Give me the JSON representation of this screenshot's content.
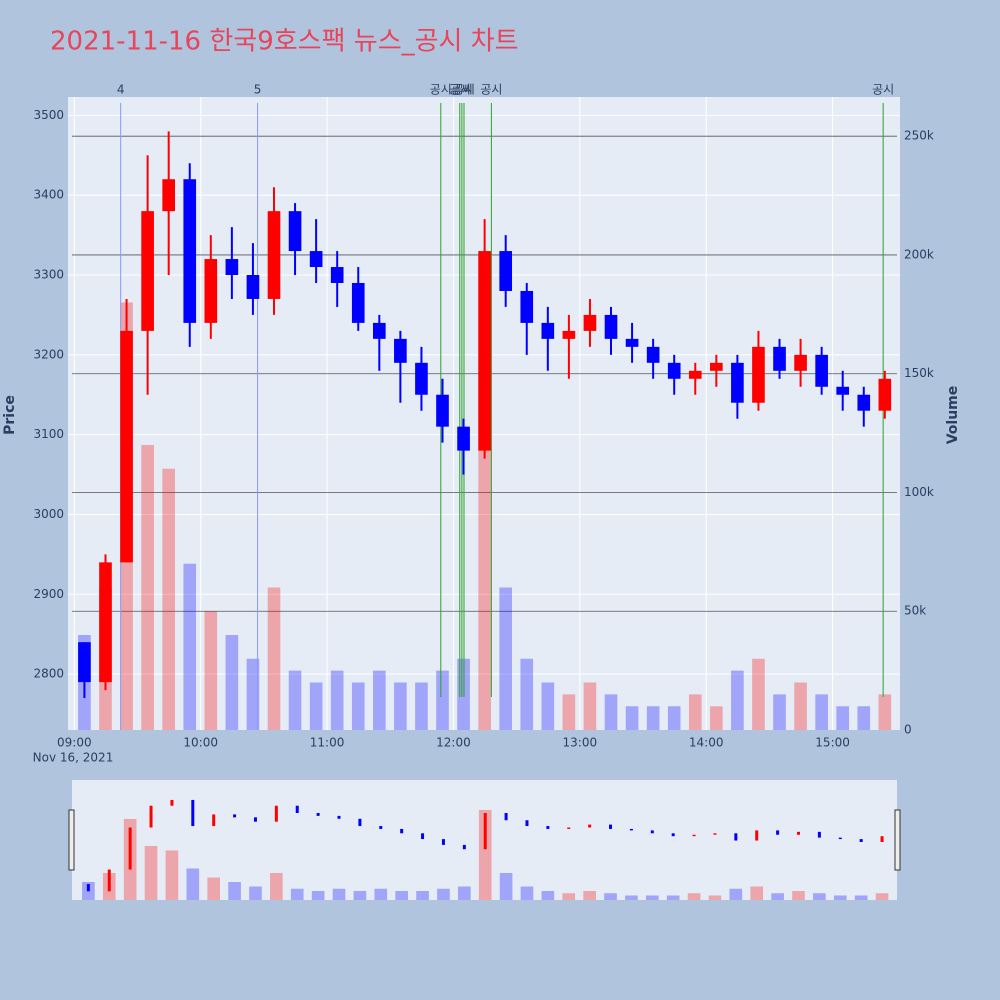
{
  "chart_data": {
    "type": "candlestick",
    "title": "2021-11-16 한국9호스팩 뉴스_공시 차트",
    "y_label": "Price",
    "y2_label": "Volume",
    "date_label": "Nov 16, 2021",
    "x": [
      "09:00",
      "09:10",
      "09:20",
      "09:30",
      "09:40",
      "09:50",
      "10:00",
      "10:10",
      "10:20",
      "10:30",
      "10:40",
      "10:50",
      "11:00",
      "11:10",
      "11:20",
      "11:30",
      "11:40",
      "11:50",
      "12:00",
      "12:10",
      "12:20",
      "12:30",
      "12:40",
      "12:50",
      "13:00",
      "13:10",
      "13:20",
      "13:30",
      "13:40",
      "13:50",
      "14:00",
      "14:10",
      "14:20",
      "14:30",
      "14:40",
      "14:50",
      "15:00",
      "15:10",
      "15:20"
    ],
    "open": [
      2840,
      2790,
      2940,
      3230,
      3380,
      3420,
      3240,
      3320,
      3300,
      3270,
      3380,
      3330,
      3310,
      3290,
      3240,
      3220,
      3190,
      3150,
      3110,
      3080,
      3330,
      3280,
      3240,
      3220,
      3230,
      3250,
      3220,
      3210,
      3190,
      3170,
      3180,
      3190,
      3140,
      3210,
      3180,
      3200,
      3160,
      3150,
      3130
    ],
    "high": [
      2840,
      2950,
      3270,
      3450,
      3480,
      3440,
      3350,
      3360,
      3340,
      3410,
      3390,
      3370,
      3330,
      3310,
      3250,
      3230,
      3210,
      3170,
      3120,
      3370,
      3350,
      3290,
      3260,
      3250,
      3270,
      3260,
      3240,
      3220,
      3200,
      3190,
      3200,
      3200,
      3230,
      3220,
      3220,
      3210,
      3180,
      3160,
      3180
    ],
    "low": [
      2770,
      2780,
      2940,
      3150,
      3300,
      3210,
      3220,
      3270,
      3250,
      3250,
      3300,
      3290,
      3260,
      3230,
      3180,
      3140,
      3130,
      3090,
      3050,
      3070,
      3260,
      3200,
      3180,
      3170,
      3210,
      3200,
      3190,
      3170,
      3150,
      3150,
      3160,
      3120,
      3130,
      3170,
      3160,
      3150,
      3130,
      3110,
      3120
    ],
    "close": [
      2790,
      2940,
      3230,
      3380,
      3420,
      3240,
      3320,
      3300,
      3270,
      3380,
      3330,
      3310,
      3290,
      3240,
      3220,
      3190,
      3150,
      3110,
      3080,
      3330,
      3280,
      3240,
      3220,
      3230,
      3250,
      3220,
      3210,
      3190,
      3170,
      3180,
      3190,
      3140,
      3210,
      3180,
      3200,
      3160,
      3150,
      3130,
      3170
    ],
    "volume": [
      40000,
      60000,
      180000,
      120000,
      110000,
      70000,
      50000,
      40000,
      30000,
      60000,
      25000,
      20000,
      25000,
      20000,
      25000,
      20000,
      20000,
      25000,
      30000,
      200000,
      60000,
      30000,
      20000,
      15000,
      20000,
      15000,
      10000,
      10000,
      10000,
      15000,
      10000,
      25000,
      30000,
      15000,
      20000,
      15000,
      10000,
      10000,
      15000
    ],
    "increasing_color": "#ff0000",
    "decreasing_color": "#0000ff",
    "xlim": [
      "08:57",
      "15:32"
    ],
    "xticks": [
      "09:00",
      "10:00",
      "11:00",
      "12:00",
      "13:00",
      "14:00",
      "15:00"
    ],
    "ylim": [
      2730,
      3523
    ],
    "yticks": [
      2800,
      2900,
      3000,
      3100,
      3200,
      3300,
      3400,
      3500
    ],
    "y2lim": [
      0,
      266500
    ],
    "y2ticks": [
      0,
      {
        "value": 50000,
        "label": "50k"
      },
      {
        "value": 100000,
        "label": "100k"
      },
      {
        "value": 150000,
        "label": "150k"
      },
      {
        "value": 200000,
        "label": "200k"
      },
      {
        "value": 250000,
        "label": "250k"
      }
    ],
    "annotations": [
      {
        "x": "09:22",
        "text": "4",
        "color": "#8899ff"
      },
      {
        "x": "10:27",
        "text": "5",
        "color": "#8899ff"
      },
      {
        "x": "11:54",
        "text": "공시",
        "color": "#2ca02c"
      },
      {
        "x": "12:03",
        "text": "공시",
        "color": "#2ca02c"
      },
      {
        "x": "12:04",
        "text": "공시",
        "color": "#2ca02c"
      },
      {
        "x": "12:05",
        "text": "공시",
        "color": "#2ca02c"
      },
      {
        "x": "12:18",
        "text": "공시",
        "color": "#2ca02c"
      },
      {
        "x": "15:24",
        "text": "공시",
        "color": "#2ca02c"
      }
    ]
  }
}
